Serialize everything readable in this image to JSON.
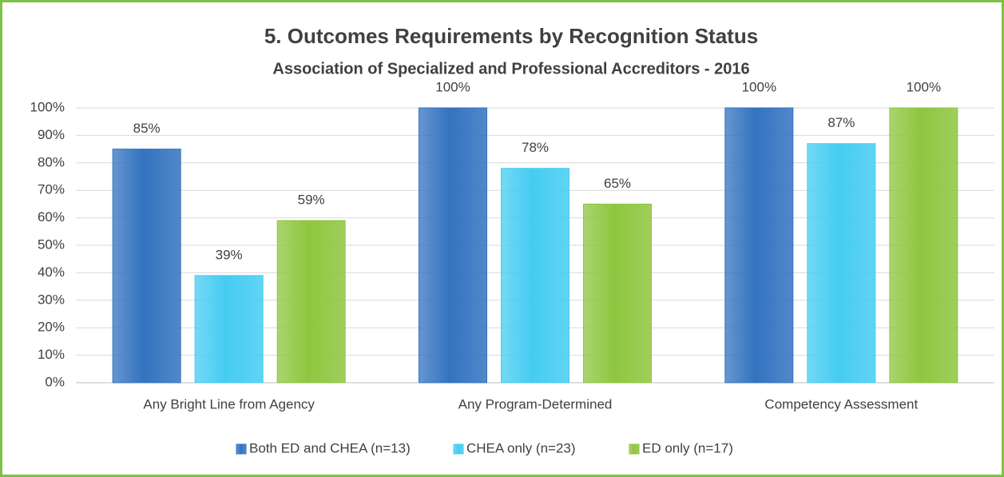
{
  "chart_data": {
    "type": "bar",
    "title": "5. Outcomes Requirements by Recognition Status",
    "subtitle": "Association of Specialized and Professional Accreditors - 2016",
    "categories": [
      "Any Bright Line from Agency",
      "Any Program-Determined",
      "Competency Assessment"
    ],
    "series": [
      {
        "name": "Both ED and CHEA (n=13)",
        "color": "#3373c0",
        "values": [
          85,
          100,
          100
        ],
        "value_labels": [
          "85%",
          "100%",
          "100%"
        ]
      },
      {
        "name": "CHEA only (n=23)",
        "color": "#45ccf2",
        "values": [
          39,
          78,
          87
        ],
        "value_labels": [
          "39%",
          "78%",
          "87%"
        ]
      },
      {
        "name": "ED only (n=17)",
        "color": "#8ec63f",
        "values": [
          59,
          65,
          100
        ],
        "value_labels": [
          "59%",
          "65%",
          "100%"
        ]
      }
    ],
    "ylim": [
      0,
      100
    ],
    "yticks": [
      {
        "value": 0,
        "label": "0%"
      },
      {
        "value": 10,
        "label": "10%"
      },
      {
        "value": 20,
        "label": "20%"
      },
      {
        "value": 30,
        "label": "30%"
      },
      {
        "value": 40,
        "label": "40%"
      },
      {
        "value": 50,
        "label": "50%"
      },
      {
        "value": 60,
        "label": "60%"
      },
      {
        "value": 70,
        "label": "70%"
      },
      {
        "value": 80,
        "label": "80%"
      },
      {
        "value": 90,
        "label": "90%"
      },
      {
        "value": 100,
        "label": "100%"
      }
    ],
    "grid": true,
    "legend": "bottom"
  }
}
